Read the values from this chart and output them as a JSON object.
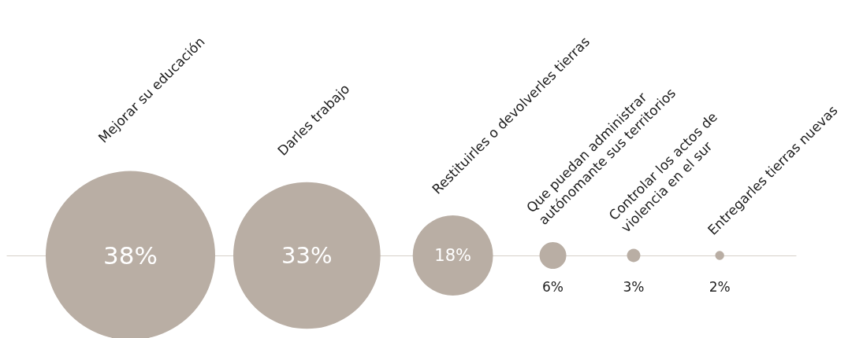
{
  "chart_data": {
    "type": "other",
    "categories": [
      "Mejorar su educación",
      "Darles trabajo",
      "Restituirles o devolverles tierras",
      "Que puedan administrar\nautónomante sus territorios",
      "Controlar los actos de\nviolencia en el sur",
      "Entregarles tierras nuevas"
    ],
    "values": [
      38,
      33,
      18,
      6,
      3,
      2
    ],
    "value_labels": [
      "38%",
      "33%",
      "18%",
      "6%",
      "3%",
      "2%"
    ],
    "color": "#b9aea4"
  }
}
